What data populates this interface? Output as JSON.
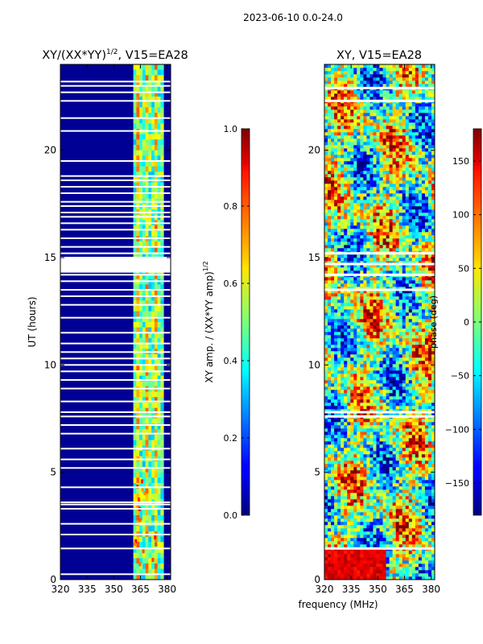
{
  "suptitle": "2023-06-10 0.0-24.0",
  "colors": {
    "white": "#ffffff",
    "axis": "#000000"
  },
  "chart_data": [
    {
      "type": "heatmap",
      "title": "XY/(XX*YY)",
      "title_exponent": "1/2",
      "title_suffix": ", V15=EA28",
      "xlabel": "",
      "ylabel": "UT (hours)",
      "x_range": [
        320,
        382
      ],
      "y_range": [
        0,
        24
      ],
      "x_ticks": [
        320,
        335,
        350,
        365,
        380
      ],
      "y_ticks": [
        0,
        5,
        10,
        15,
        20
      ],
      "colorbar": {
        "label": "XY amp. / (XX*YY amp)",
        "label_exponent": "1/2",
        "range": [
          0.0,
          1.0
        ],
        "ticks": [
          "0.0",
          "0.2",
          "0.4",
          "0.6",
          "0.8",
          "1.0"
        ]
      },
      "description_values": {
        "background_level": 0.02,
        "active_band_MHz": [
          361,
          378
        ],
        "active_band_level_range": [
          0.3,
          0.65
        ]
      },
      "gap_hours": [
        0.25,
        1.45,
        2.1,
        2.6,
        3.3,
        3.5,
        3.6,
        4.3,
        5.2,
        5.6,
        6.1,
        6.8,
        7.2,
        7.6,
        7.8,
        8.3,
        8.9,
        9.3,
        9.7,
        10.0,
        10.3,
        10.6,
        11.0,
        11.5,
        12.2,
        12.8,
        13.2,
        13.5,
        13.9,
        14.2,
        14.35,
        14.5,
        14.7,
        14.85,
        15.0,
        15.2,
        15.5,
        15.9,
        16.3,
        16.6,
        16.9,
        17.1,
        17.4,
        17.6,
        18.0,
        18.3,
        18.6,
        18.8,
        19.5,
        20.9,
        21.5,
        22.3,
        22.7,
        23.0,
        23.2
      ]
    },
    {
      "type": "heatmap",
      "title": "XY, V15=EA28",
      "xlabel": "frequency (MHz)",
      "ylabel": "",
      "x_range": [
        320,
        382
      ],
      "y_range": [
        0,
        24
      ],
      "x_ticks": [
        320,
        335,
        350,
        365,
        380
      ],
      "y_ticks": [
        0,
        5,
        10,
        15,
        20
      ],
      "colorbar": {
        "label": "phase (deg)",
        "range": [
          -180,
          180
        ],
        "ticks": [
          "−150",
          "−100",
          "−50",
          "0",
          "50",
          "100",
          "150"
        ]
      },
      "description_values": {
        "phase_range_deg": [
          -180,
          180
        ]
      },
      "gap_hours": [
        1.45,
        7.6,
        7.8,
        13.5,
        14.2,
        14.7,
        15.2,
        22.3,
        22.9
      ]
    }
  ]
}
